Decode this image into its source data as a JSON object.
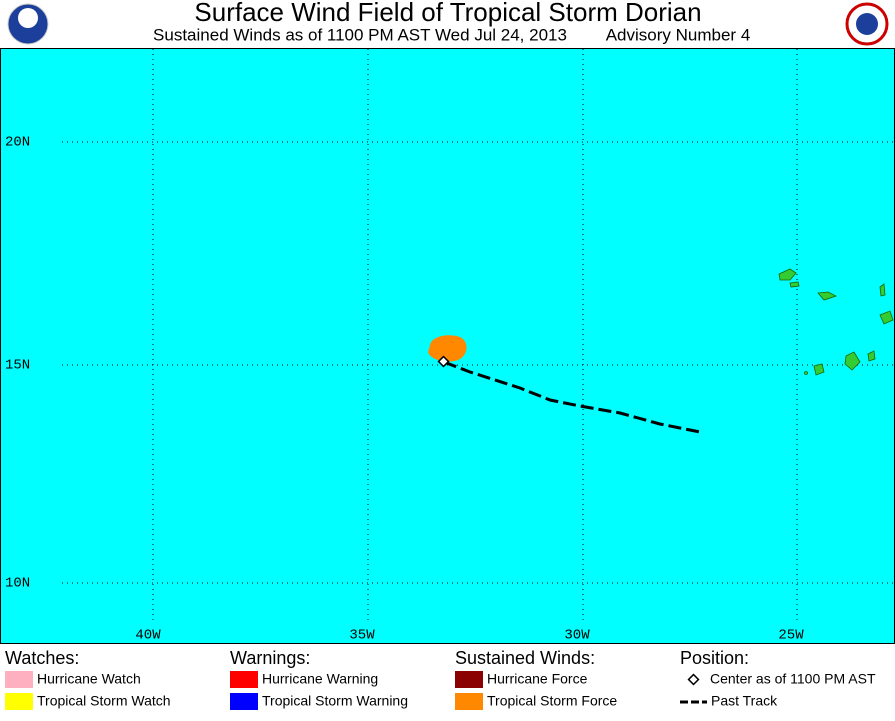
{
  "header": {
    "title": "Surface Wind Field of Tropical Storm Dorian",
    "subtitle": "Sustained Winds as of 1100 PM AST Wed Jul 24, 2013",
    "advisory": "Advisory Number 4"
  },
  "map": {
    "lon_labels": [
      "40W",
      "35W",
      "30W",
      "25W"
    ],
    "lat_labels": [
      "20N",
      "15N",
      "10N"
    ]
  },
  "legend": {
    "watches": {
      "title": "Watches:",
      "items": [
        "Hurricane Watch",
        "Tropical Storm Watch"
      ]
    },
    "warnings": {
      "title": "Warnings:",
      "items": [
        "Hurricane Warning",
        "Tropical Storm Warning"
      ]
    },
    "winds": {
      "title": "Sustained Winds:",
      "items": [
        "Hurricane Force",
        "Tropical Storm Force"
      ]
    },
    "position": {
      "title": "Position:",
      "items": [
        "Center as of 1100 PM AST",
        "Past Track"
      ]
    }
  }
}
